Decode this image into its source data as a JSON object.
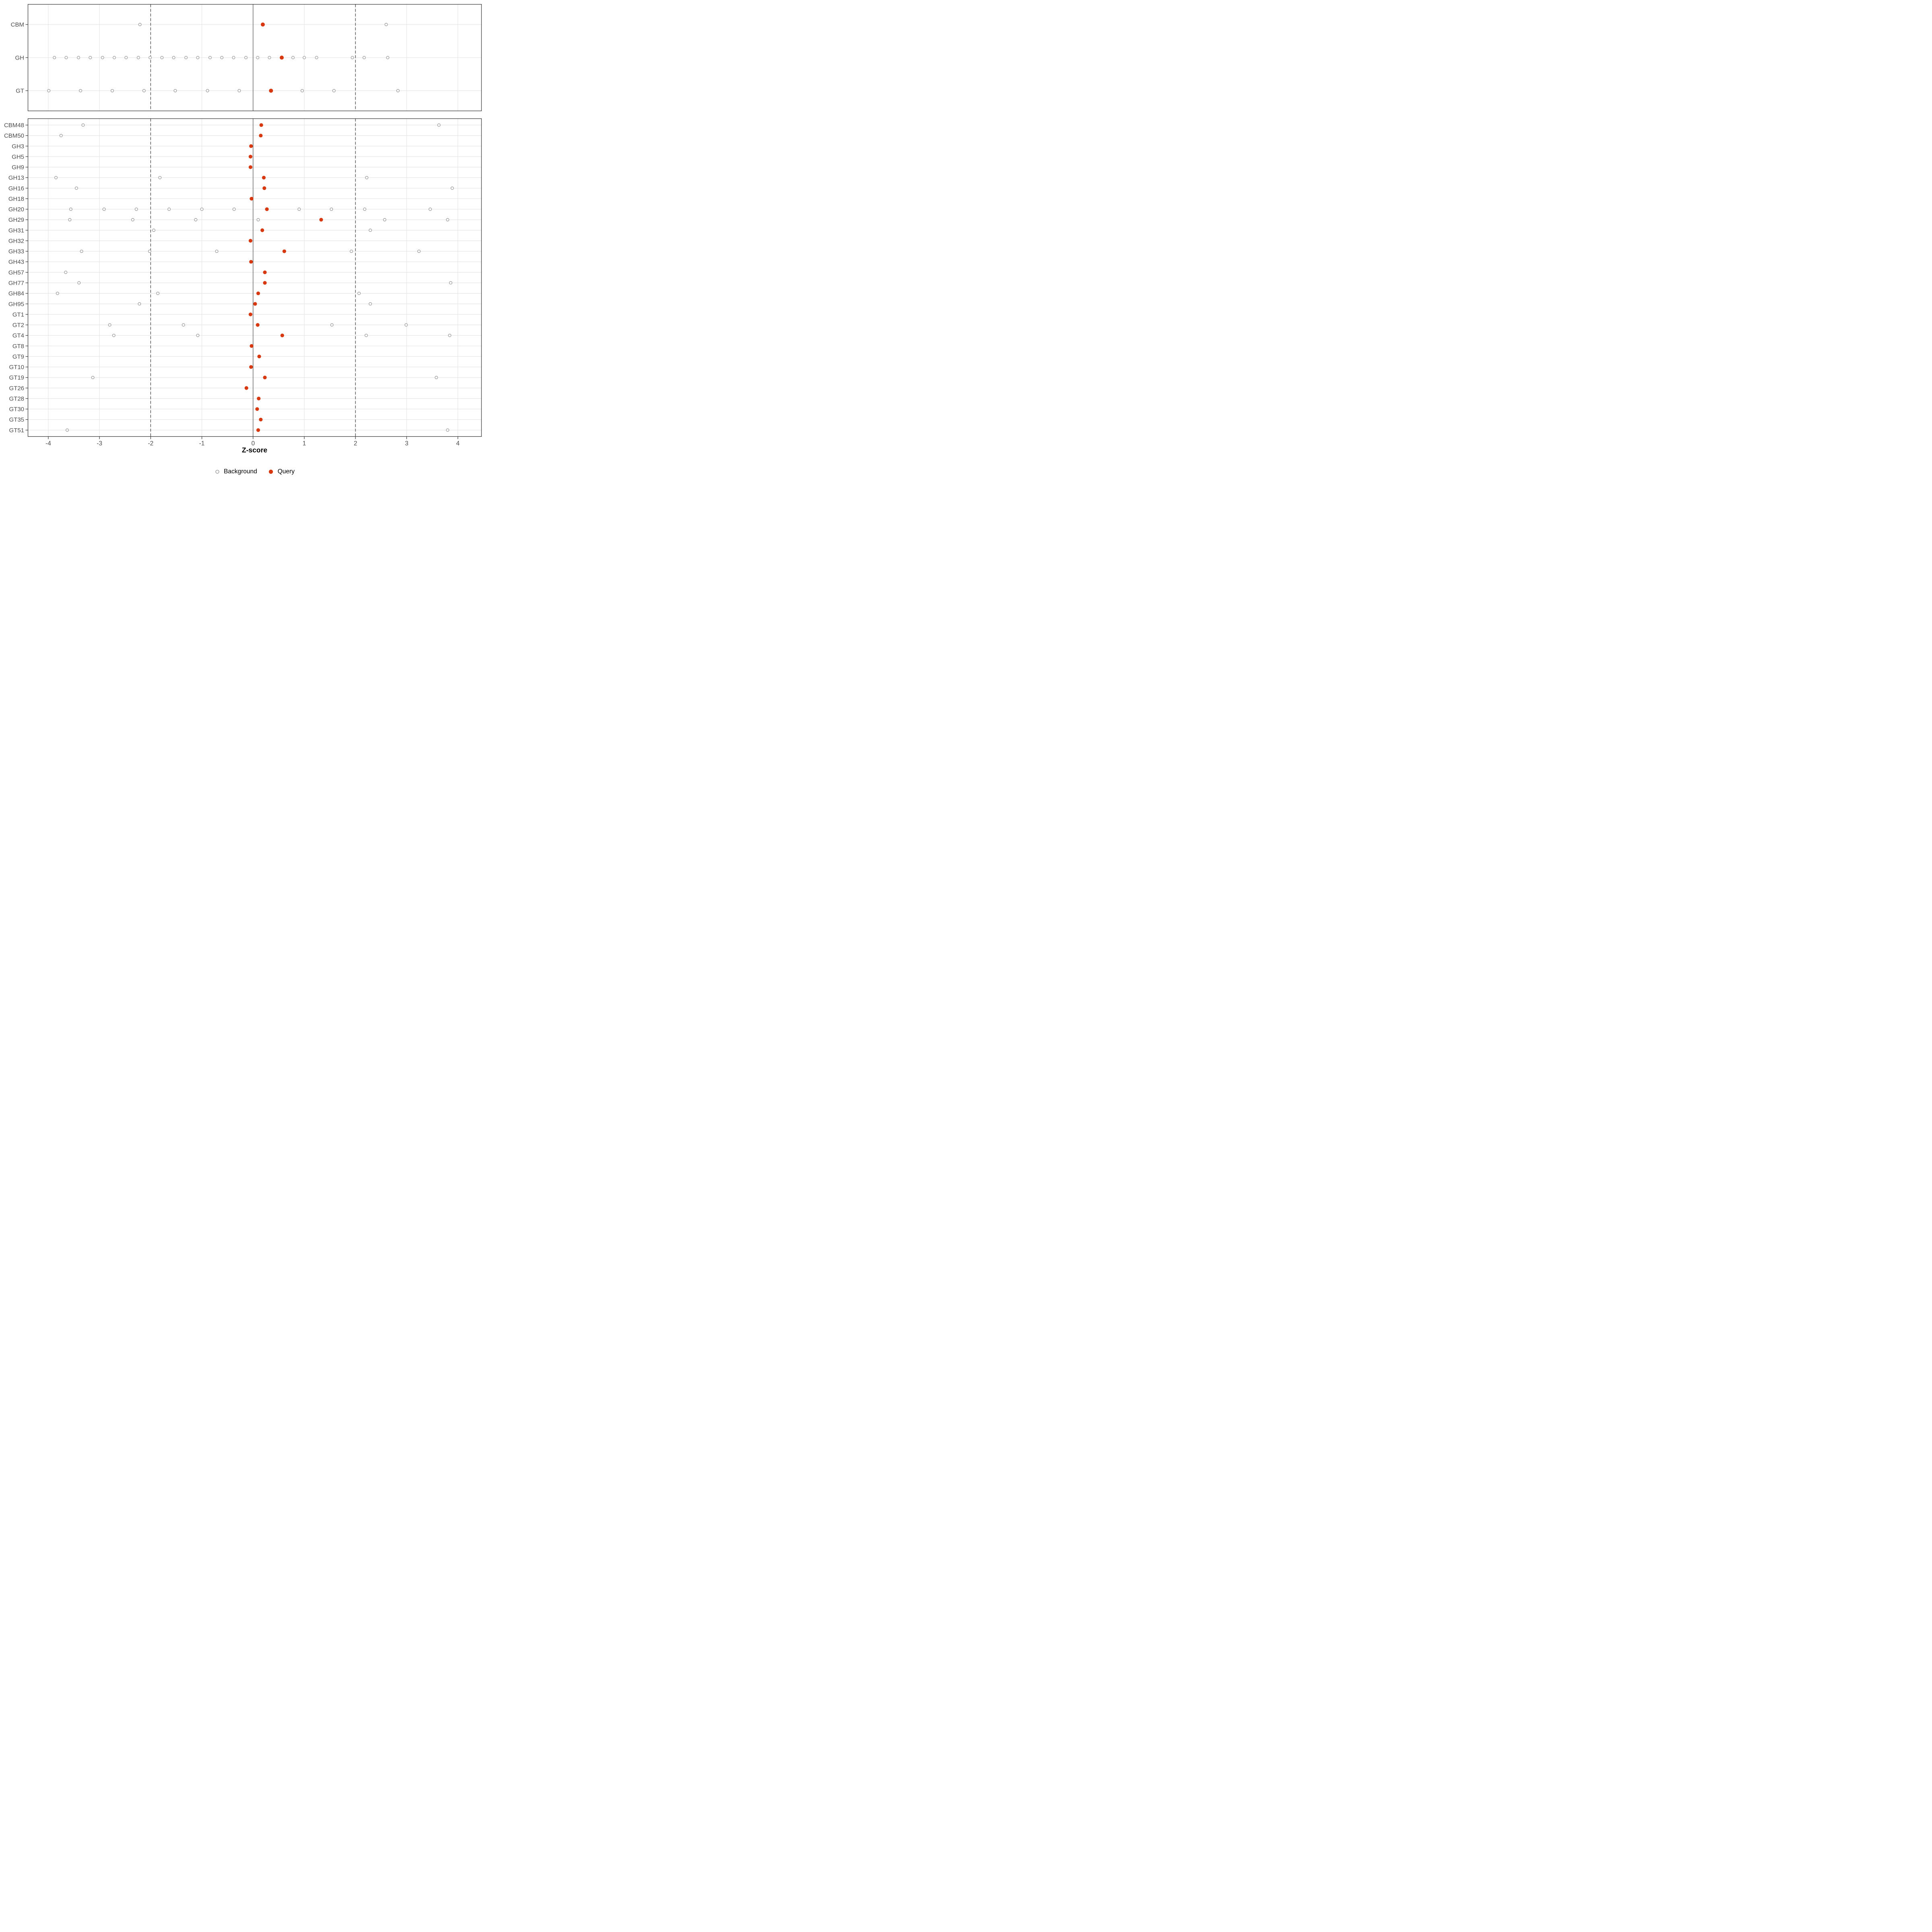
{
  "figure": {
    "xlabel": "Z-score",
    "legend": {
      "background_label": "Background",
      "query_label": "Query"
    }
  },
  "chart_data": {
    "type": "scatter",
    "title": "",
    "xlabel": "Z-score",
    "xlim": [
      -4.4,
      4.46
    ],
    "xticks": [
      -4,
      -3,
      -2,
      -1,
      0,
      1,
      2,
      3,
      4
    ],
    "grid": "light horizontal line per category and vertical line per integer tick",
    "legend_position": "bottom",
    "reference_lines": {
      "solid_at": 0,
      "dashed_at": [
        -2,
        2
      ]
    },
    "legend_entries": [
      {
        "label": "Background",
        "marker": "open-circle",
        "color": "#909090"
      },
      {
        "label": "Query",
        "marker": "filled-circle",
        "color": "#d8380f"
      }
    ],
    "colors": {
      "query": "#d8380f",
      "background": "#909090",
      "grid": "#e2e2e2",
      "refline": "#4a4a4a",
      "zeroline": "#404040",
      "panel_border": "#2e2e2e",
      "axis_text": "#4d4d4d",
      "tick_mark": "#333333"
    },
    "panels": [
      {
        "name": "class-summary",
        "rows": [
          {
            "category": "CBM",
            "query": 0.19,
            "background": [
              -2.21,
              2.6
            ]
          },
          {
            "category": "GH",
            "query": 0.56,
            "background": [
              -3.88,
              -3.65,
              -3.41,
              -3.18,
              -2.94,
              -2.71,
              -2.48,
              -2.24,
              -2.01,
              -1.78,
              -1.55,
              -1.31,
              -1.08,
              -0.84,
              -0.61,
              -0.38,
              -0.14,
              0.09,
              0.32,
              0.78,
              1.0,
              1.24,
              1.94,
              2.17,
              2.63
            ]
          },
          {
            "category": "GT",
            "query": 0.35,
            "background": [
              -3.99,
              -3.37,
              -2.75,
              -2.13,
              -1.52,
              -0.89,
              -0.27,
              0.96,
              1.58,
              2.83
            ]
          }
        ]
      },
      {
        "name": "family-detail",
        "rows": [
          {
            "category": "CBM48",
            "query": 0.16,
            "background": [
              -3.32,
              3.63
            ]
          },
          {
            "category": "CBM50",
            "query": 0.15,
            "background": [
              -3.75
            ]
          },
          {
            "category": "GH3",
            "query": -0.04,
            "background": []
          },
          {
            "category": "GH5",
            "query": -0.05,
            "background": []
          },
          {
            "category": "GH9",
            "query": -0.05,
            "background": []
          },
          {
            "category": "GH13",
            "query": 0.21,
            "background": [
              -3.85,
              -1.82,
              2.22
            ]
          },
          {
            "category": "GH16",
            "query": 0.22,
            "background": [
              -3.45,
              3.89
            ]
          },
          {
            "category": "GH18",
            "query": -0.03,
            "background": []
          },
          {
            "category": "GH20",
            "query": 0.27,
            "background": [
              -3.56,
              -2.91,
              -2.28,
              -1.64,
              -1.0,
              -0.37,
              0.9,
              1.53,
              2.18,
              3.46
            ]
          },
          {
            "category": "GH29",
            "query": 1.33,
            "background": [
              -3.58,
              -2.35,
              -1.12,
              0.1,
              2.57,
              3.8
            ]
          },
          {
            "category": "GH31",
            "query": 0.18,
            "background": [
              -1.94,
              2.29
            ]
          },
          {
            "category": "GH32",
            "query": -0.05,
            "background": []
          },
          {
            "category": "GH33",
            "query": 0.61,
            "background": [
              -3.35,
              -2.02,
              -0.71,
              1.92,
              3.24
            ]
          },
          {
            "category": "GH43",
            "query": -0.04,
            "background": []
          },
          {
            "category": "GH57",
            "query": 0.23,
            "background": [
              -3.66
            ]
          },
          {
            "category": "GH77",
            "query": 0.23,
            "background": [
              -3.4,
              3.86
            ]
          },
          {
            "category": "GH84",
            "query": 0.1,
            "background": [
              -3.82,
              -1.86,
              2.07
            ]
          },
          {
            "category": "GH95",
            "query": 0.04,
            "background": [
              -2.22,
              2.29
            ]
          },
          {
            "category": "GT1",
            "query": -0.05,
            "background": []
          },
          {
            "category": "GT2",
            "query": 0.09,
            "background": [
              -2.8,
              -1.36,
              1.54,
              2.99
            ]
          },
          {
            "category": "GT4",
            "query": 0.57,
            "background": [
              -2.72,
              -1.08,
              2.21,
              3.84
            ]
          },
          {
            "category": "GT8",
            "query": -0.03,
            "background": []
          },
          {
            "category": "GT9",
            "query": 0.12,
            "background": []
          },
          {
            "category": "GT10",
            "query": -0.04,
            "background": []
          },
          {
            "category": "GT19",
            "query": 0.23,
            "background": [
              -3.13,
              3.58
            ]
          },
          {
            "category": "GT26",
            "query": -0.13,
            "background": []
          },
          {
            "category": "GT28",
            "query": 0.11,
            "background": []
          },
          {
            "category": "GT30",
            "query": 0.08,
            "background": []
          },
          {
            "category": "GT35",
            "query": 0.15,
            "background": []
          },
          {
            "category": "GT51",
            "query": 0.1,
            "background": [
              -3.63,
              3.8
            ]
          }
        ]
      }
    ]
  }
}
